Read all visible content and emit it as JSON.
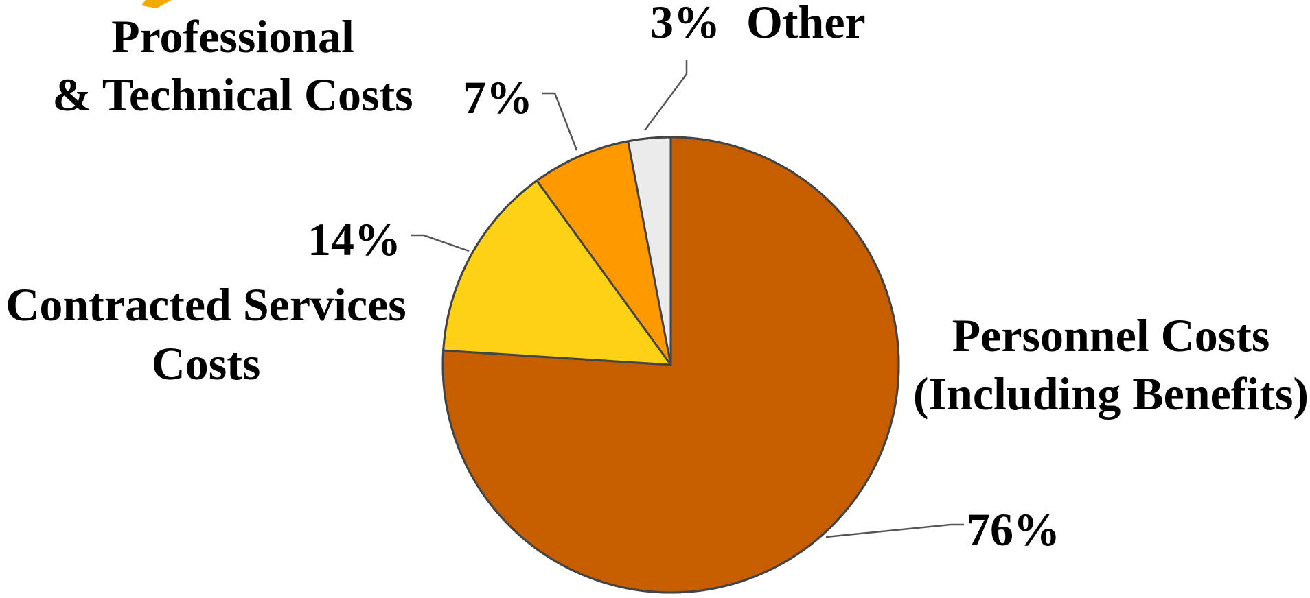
{
  "chart_data": {
    "type": "pie",
    "start_angle": "12 o'clock",
    "direction": "clockwise",
    "legend": "none",
    "slices": [
      {
        "name": "Personnel Costs (Including Benefits)",
        "label_lines": [
          "Personnel Costs",
          "(Including Benefits)"
        ],
        "value": 76,
        "pct_label": "76%",
        "color": "#C65E00"
      },
      {
        "name": "Contracted Services Costs",
        "label_lines": [
          "Contracted Services",
          "Costs"
        ],
        "value": 14,
        "pct_label": "14%",
        "color": "#FCD116"
      },
      {
        "name": "Professional & Technical Costs",
        "label_lines": [
          "Professional",
          "& Technical Costs"
        ],
        "value": 7,
        "pct_label": "7%",
        "color": "#FF9900"
      },
      {
        "name": "Other",
        "label_lines": [
          "Other"
        ],
        "value": 3,
        "pct_label": "3%",
        "color": "#EBEBEB"
      }
    ]
  },
  "partial_icon_color": "#F2A900"
}
